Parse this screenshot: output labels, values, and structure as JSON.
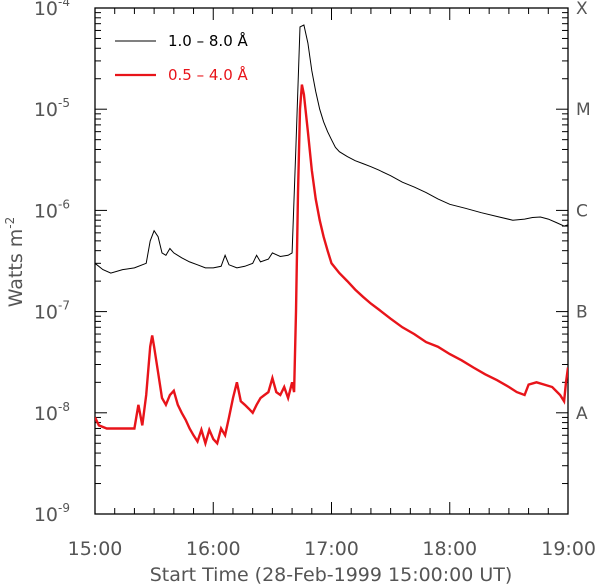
{
  "chart_data": {
    "type": "line",
    "title": "",
    "xlabel": "Start Time (28-Feb-1999 15:00:00 UT)",
    "ylabel": "Watts m",
    "ylabel_exponent": "-2",
    "xlim": [
      0,
      240
    ],
    "ylim_log10": [
      -9,
      -4
    ],
    "y_scale": "log",
    "grid": false,
    "x_unit": "minutes after 15:00 UT",
    "x_ticks": [
      {
        "x": 0,
        "label": "15:00"
      },
      {
        "x": 60,
        "label": "16:00"
      },
      {
        "x": 120,
        "label": "17:00"
      },
      {
        "x": 180,
        "label": "18:00"
      },
      {
        "x": 240,
        "label": "19:00"
      }
    ],
    "y_ticks": [
      {
        "exp": -4,
        "base": "10",
        "sup": "-4"
      },
      {
        "exp": -5,
        "base": "10",
        "sup": "-5"
      },
      {
        "exp": -6,
        "base": "10",
        "sup": "-6"
      },
      {
        "exp": -7,
        "base": "10",
        "sup": "-7"
      },
      {
        "exp": -8,
        "base": "10",
        "sup": "-8"
      },
      {
        "exp": -9,
        "base": "10",
        "sup": "-9"
      }
    ],
    "goes_classes": [
      {
        "label": "X",
        "exp": -4
      },
      {
        "label": "M",
        "exp": -5
      },
      {
        "label": "C",
        "exp": -6
      },
      {
        "label": "B",
        "exp": -7
      },
      {
        "label": "A",
        "exp": -8
      }
    ],
    "legend": {
      "placement": "top-left"
    },
    "series": [
      {
        "name": "1.0 – 8.0 Å",
        "color": "#000000",
        "points": [
          [
            0,
            3e-07
          ],
          [
            4,
            2.6e-07
          ],
          [
            8,
            2.4e-07
          ],
          [
            14,
            2.6e-07
          ],
          [
            20,
            2.7e-07
          ],
          [
            26,
            3e-07
          ],
          [
            28,
            5e-07
          ],
          [
            30,
            6.3e-07
          ],
          [
            32,
            5.5e-07
          ],
          [
            34,
            3.8e-07
          ],
          [
            36,
            3.6e-07
          ],
          [
            38,
            4.2e-07
          ],
          [
            40,
            3.8e-07
          ],
          [
            44,
            3.4e-07
          ],
          [
            48,
            3.1e-07
          ],
          [
            52,
            2.9e-07
          ],
          [
            56,
            2.7e-07
          ],
          [
            60,
            2.7e-07
          ],
          [
            64,
            2.8e-07
          ],
          [
            66,
            3.6e-07
          ],
          [
            68,
            2.9e-07
          ],
          [
            72,
            2.7e-07
          ],
          [
            76,
            2.8e-07
          ],
          [
            80,
            3e-07
          ],
          [
            82,
            3.6e-07
          ],
          [
            84,
            3.1e-07
          ],
          [
            88,
            3.3e-07
          ],
          [
            90,
            3.8e-07
          ],
          [
            94,
            3.5e-07
          ],
          [
            98,
            3.6e-07
          ],
          [
            100,
            3.8e-07
          ],
          [
            102,
            4.5e-06
          ],
          [
            104,
            6.5e-05
          ],
          [
            106,
            6.8e-05
          ],
          [
            108,
            4.5e-05
          ],
          [
            110,
            2.4e-05
          ],
          [
            112,
            1.5e-05
          ],
          [
            114,
            1e-05
          ],
          [
            116,
            7.5e-06
          ],
          [
            118,
            6e-06
          ],
          [
            120,
            5e-06
          ],
          [
            122,
            4.2e-06
          ],
          [
            124,
            3.8e-06
          ],
          [
            128,
            3.4e-06
          ],
          [
            132,
            3.1e-06
          ],
          [
            136,
            2.9e-06
          ],
          [
            140,
            2.7e-06
          ],
          [
            144,
            2.5e-06
          ],
          [
            150,
            2.2e-06
          ],
          [
            156,
            1.9e-06
          ],
          [
            162,
            1.7e-06
          ],
          [
            168,
            1.5e-06
          ],
          [
            174,
            1.3e-06
          ],
          [
            180,
            1.15e-06
          ],
          [
            188,
            1.05e-06
          ],
          [
            196,
            9.5e-07
          ],
          [
            204,
            8.7e-07
          ],
          [
            212,
            8e-07
          ],
          [
            218,
            8.2e-07
          ],
          [
            222,
            8.5e-07
          ],
          [
            226,
            8.6e-07
          ],
          [
            230,
            8.2e-07
          ],
          [
            234,
            7.6e-07
          ],
          [
            238,
            7e-07
          ],
          [
            240,
            7.2e-07
          ]
        ]
      },
      {
        "name": "0.5 – 4.0 Å",
        "color": "#e8141a",
        "points": [
          [
            0,
            9e-09
          ],
          [
            2,
            7.5e-09
          ],
          [
            6,
            7e-09
          ],
          [
            14,
            7e-09
          ],
          [
            20,
            7e-09
          ],
          [
            22,
            1.2e-08
          ],
          [
            24,
            7.5e-09
          ],
          [
            26,
            1.5e-08
          ],
          [
            28,
            4.5e-08
          ],
          [
            29,
            5.8e-08
          ],
          [
            30,
            4.5e-08
          ],
          [
            32,
            2.5e-08
          ],
          [
            34,
            1.4e-08
          ],
          [
            36,
            1.2e-08
          ],
          [
            38,
            1.5e-08
          ],
          [
            40,
            1.65e-08
          ],
          [
            42,
            1.2e-08
          ],
          [
            44,
            1e-08
          ],
          [
            46,
            8.5e-09
          ],
          [
            48,
            7e-09
          ],
          [
            50,
            6e-09
          ],
          [
            52,
            5.2e-09
          ],
          [
            54,
            6.8e-09
          ],
          [
            56,
            5e-09
          ],
          [
            58,
            6.8e-09
          ],
          [
            60,
            5.5e-09
          ],
          [
            62,
            5e-09
          ],
          [
            64,
            7e-09
          ],
          [
            66,
            6e-09
          ],
          [
            68,
            9e-09
          ],
          [
            70,
            1.4e-08
          ],
          [
            72,
            2e-08
          ],
          [
            74,
            1.3e-08
          ],
          [
            76,
            1.2e-08
          ],
          [
            78,
            1.1e-08
          ],
          [
            80,
            1e-08
          ],
          [
            82,
            1.2e-08
          ],
          [
            84,
            1.4e-08
          ],
          [
            86,
            1.5e-08
          ],
          [
            88,
            1.6e-08
          ],
          [
            90,
            2.2e-08
          ],
          [
            92,
            1.6e-08
          ],
          [
            94,
            1.5e-08
          ],
          [
            96,
            1.8e-08
          ],
          [
            98,
            1.4e-08
          ],
          [
            100,
            2e-08
          ],
          [
            101,
            1.6e-08
          ],
          [
            102,
            1e-07
          ],
          [
            103,
            1.5e-06
          ],
          [
            104,
            1e-05
          ],
          [
            105,
            1.75e-05
          ],
          [
            106,
            1.4e-05
          ],
          [
            108,
            6e-06
          ],
          [
            110,
            2.5e-06
          ],
          [
            112,
            1.3e-06
          ],
          [
            114,
            8e-07
          ],
          [
            116,
            5.5e-07
          ],
          [
            118,
            4e-07
          ],
          [
            120,
            3e-07
          ],
          [
            124,
            2.4e-07
          ],
          [
            128,
            2e-07
          ],
          [
            132,
            1.65e-07
          ],
          [
            136,
            1.4e-07
          ],
          [
            140,
            1.2e-07
          ],
          [
            144,
            1.05e-07
          ],
          [
            150,
            8.5e-08
          ],
          [
            156,
            7e-08
          ],
          [
            162,
            6e-08
          ],
          [
            168,
            5e-08
          ],
          [
            174,
            4.5e-08
          ],
          [
            180,
            3.8e-08
          ],
          [
            186,
            3.3e-08
          ],
          [
            192,
            2.8e-08
          ],
          [
            198,
            2.4e-08
          ],
          [
            204,
            2.1e-08
          ],
          [
            210,
            1.8e-08
          ],
          [
            214,
            1.6e-08
          ],
          [
            218,
            1.5e-08
          ],
          [
            220,
            1.9e-08
          ],
          [
            224,
            2e-08
          ],
          [
            228,
            1.9e-08
          ],
          [
            232,
            1.8e-08
          ],
          [
            236,
            1.5e-08
          ],
          [
            238,
            1.3e-08
          ],
          [
            239,
            2e-08
          ],
          [
            240,
            2.8e-08
          ]
        ]
      }
    ]
  }
}
